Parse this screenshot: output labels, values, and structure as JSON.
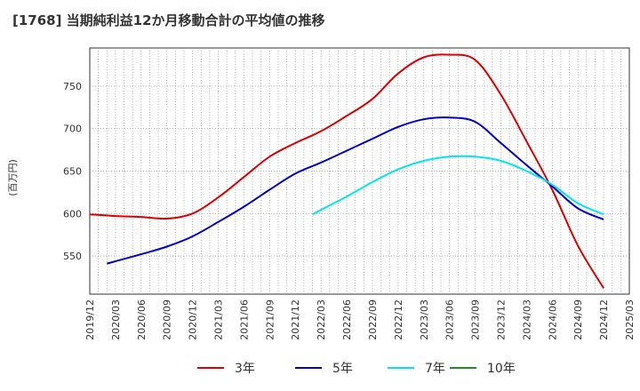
{
  "chart_data": {
    "type": "line",
    "title": "[1768]  当期純利益12か月移動合計の平均値の推移",
    "ylabel": "(百万円)",
    "xlabel": "",
    "x_ticks": [
      "2019/12",
      "2020/03",
      "2020/06",
      "2020/09",
      "2020/12",
      "2021/03",
      "2021/06",
      "2021/09",
      "2021/12",
      "2022/03",
      "2022/06",
      "2022/09",
      "2022/12",
      "2023/03",
      "2023/06",
      "2023/09",
      "2023/12",
      "2024/03",
      "2024/06",
      "2024/09",
      "2024/12",
      "2025/03"
    ],
    "y_ticks": [
      550,
      600,
      650,
      700,
      750
    ],
    "ylim": [
      505,
      795
    ],
    "grid": true,
    "legend_position": "bottom",
    "series": [
      {
        "name": "3年",
        "color": "#dd0000",
        "x": [
          "2019/12",
          "2020/03",
          "2020/06",
          "2020/09",
          "2020/12",
          "2021/03",
          "2021/06",
          "2021/09",
          "2021/12",
          "2022/03",
          "2022/06",
          "2022/09",
          "2022/12",
          "2023/03",
          "2023/06",
          "2023/09",
          "2023/12",
          "2024/03",
          "2024/06",
          "2024/09",
          "2024/12"
        ],
        "values": [
          599,
          597,
          596,
          594,
          600,
          619,
          643,
          667,
          683,
          697,
          715,
          735,
          765,
          784,
          787,
          781,
          740,
          685,
          628,
          562,
          512
        ]
      },
      {
        "name": "5年",
        "color": "#0000cc",
        "x": [
          "2020/02",
          "2020/06",
          "2020/09",
          "2020/12",
          "2021/03",
          "2021/06",
          "2021/09",
          "2021/12",
          "2022/03",
          "2022/06",
          "2022/09",
          "2022/12",
          "2023/03",
          "2023/06",
          "2023/09",
          "2023/12",
          "2024/03",
          "2024/06",
          "2024/09",
          "2024/12"
        ],
        "values": [
          541,
          552,
          561,
          573,
          590,
          608,
          628,
          647,
          660,
          674,
          688,
          702,
          711,
          713,
          708,
          683,
          657,
          632,
          606,
          593
        ]
      },
      {
        "name": "7年",
        "color": "#00e5ee",
        "x": [
          "2022/02",
          "2022/06",
          "2022/09",
          "2022/12",
          "2023/03",
          "2023/06",
          "2023/09",
          "2023/12",
          "2024/03",
          "2024/06",
          "2024/09",
          "2024/12"
        ],
        "values": [
          599,
          620,
          637,
          652,
          662,
          667,
          667,
          662,
          650,
          634,
          612,
          599
        ]
      },
      {
        "name": "10年",
        "color": "#228b22",
        "x": [],
        "values": []
      }
    ]
  }
}
